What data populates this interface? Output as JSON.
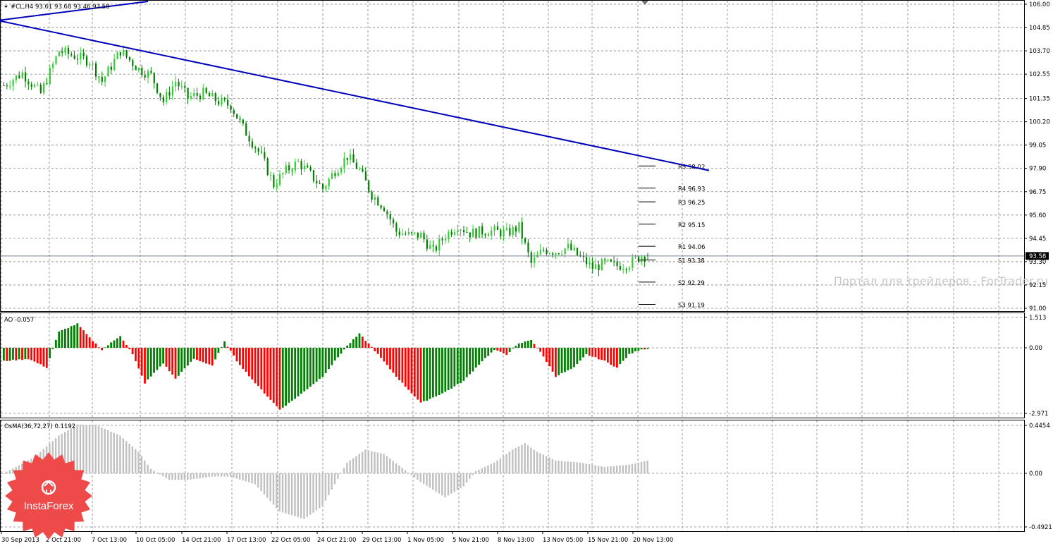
{
  "header": {
    "main_title": "#CL,H4  93.61 93.68 93.46 93.58",
    "ao_title": "AO -0.057",
    "osma_title": "OsMA(36,72,27) 0.1192"
  },
  "price_axis": {
    "labels": [
      "106.00",
      "104.85",
      "103.70",
      "102.55",
      "101.35",
      "100.20",
      "99.05",
      "97.90",
      "96.75",
      "95.60",
      "94.45",
      "93.30",
      "92.15",
      "91.00"
    ],
    "current_price": "93.58"
  },
  "ao_axis": {
    "labels": [
      "1.513",
      "0.00",
      "-2.971"
    ]
  },
  "osma_axis": {
    "labels": [
      "0.4454",
      "0.00",
      "-0.4921"
    ]
  },
  "time_axis": {
    "labels": [
      "30 Sep 2013",
      "2 Oct 21:00",
      "7 Oct 13:00",
      "10 Oct 05:00",
      "14 Oct 21:00",
      "17 Oct 13:00",
      "22 Oct 05:00",
      "24 Oct 21:00",
      "29 Oct 13:00",
      "1 Nov 05:00",
      "5 Nov 21:00",
      "8 Nov 13:00",
      "13 Nov 05:00",
      "15 Nov 21:00",
      "20 Nov 13:00"
    ]
  },
  "pivot_levels": [
    {
      "label": "R5 98.02",
      "value": 98.02
    },
    {
      "label": "R4 96.93",
      "value": 96.93
    },
    {
      "label": "R3 96.25",
      "value": 96.25
    },
    {
      "label": "R2 95.15",
      "value": 95.15
    },
    {
      "label": "R1 94.06",
      "value": 94.06
    },
    {
      "label": "S1 93.38",
      "value": 93.38
    },
    {
      "label": "S2 92.29",
      "value": 92.29
    },
    {
      "label": "S3 91.19",
      "value": 91.19
    }
  ],
  "watermark": "Портал для трейдеров - ForTrader.ru",
  "logo": {
    "text": "InstaForex"
  },
  "colors": {
    "bull": "#32cd32",
    "bear": "#008000",
    "ao_up": "#008000",
    "ao_down": "#ff0000",
    "osma": "#c0c0c0",
    "trendline": "#0000bb",
    "logo_red": "#ef4a4a"
  },
  "chart_data": {
    "type": "candlestick",
    "instrument": "#CL",
    "timeframe": "H4",
    "last_ohlc": {
      "open": 93.61,
      "high": 93.68,
      "low": 93.46,
      "close": 93.58
    },
    "price_range": [
      90.8,
      106.2
    ],
    "close_path": [
      [
        0,
        102.0
      ],
      [
        6,
        102.6
      ],
      [
        12,
        101.6
      ],
      [
        18,
        103.7
      ],
      [
        22,
        103.5
      ],
      [
        28,
        103.2
      ],
      [
        32,
        102.2
      ],
      [
        38,
        103.7
      ],
      [
        44,
        102.8
      ],
      [
        48,
        102.5
      ],
      [
        52,
        101.2
      ],
      [
        56,
        102.2
      ],
      [
        60,
        101.4
      ],
      [
        65,
        101.6
      ],
      [
        70,
        101.2
      ],
      [
        74,
        101.0
      ],
      [
        78,
        99.9
      ],
      [
        84,
        98.5
      ],
      [
        88,
        97.1
      ],
      [
        92,
        97.8
      ],
      [
        96,
        98.2
      ],
      [
        100,
        97.6
      ],
      [
        104,
        96.9
      ],
      [
        108,
        97.8
      ],
      [
        112,
        98.5
      ],
      [
        116,
        97.8
      ],
      [
        120,
        96.6
      ],
      [
        124,
        96.0
      ],
      [
        128,
        94.8
      ],
      [
        132,
        94.6
      ],
      [
        136,
        94.6
      ],
      [
        140,
        93.8
      ],
      [
        144,
        94.6
      ],
      [
        148,
        95.1
      ],
      [
        152,
        94.7
      ],
      [
        156,
        94.8
      ],
      [
        160,
        94.8
      ],
      [
        164,
        94.7
      ],
      [
        168,
        95.0
      ],
      [
        172,
        93.2
      ],
      [
        176,
        93.9
      ],
      [
        180,
        93.8
      ],
      [
        184,
        94.0
      ],
      [
        188,
        93.5
      ],
      [
        192,
        93.0
      ],
      [
        196,
        93.2
      ],
      [
        200,
        93.1
      ],
      [
        204,
        93.2
      ],
      [
        208,
        93.6
      ],
      [
        210,
        93.58
      ]
    ],
    "pivot_levels": [
      98.02,
      96.93,
      96.25,
      95.15,
      94.06,
      93.38,
      92.29,
      91.19
    ],
    "current_price": 93.58,
    "trendline": [
      {
        "bar": -2,
        "price": 105.2
      },
      {
        "bar": 230,
        "price": 97.8
      }
    ],
    "ao_range": [
      -2.971,
      1.513
    ],
    "ao_path": [
      [
        0,
        -0.6
      ],
      [
        8,
        -0.5
      ],
      [
        14,
        -0.9
      ],
      [
        18,
        0.8
      ],
      [
        24,
        1.2
      ],
      [
        28,
        0.5
      ],
      [
        32,
        -0.1
      ],
      [
        38,
        0.6
      ],
      [
        42,
        -0.3
      ],
      [
        46,
        -1.6
      ],
      [
        52,
        -0.7
      ],
      [
        56,
        -1.4
      ],
      [
        62,
        -0.5
      ],
      [
        68,
        -0.8
      ],
      [
        72,
        0.3
      ],
      [
        76,
        -0.6
      ],
      [
        82,
        -1.6
      ],
      [
        90,
        -2.8
      ],
      [
        96,
        -2.2
      ],
      [
        104,
        -1.3
      ],
      [
        112,
        0.1
      ],
      [
        116,
        0.7
      ],
      [
        122,
        -0.3
      ],
      [
        128,
        -1.3
      ],
      [
        136,
        -2.5
      ],
      [
        144,
        -2.0
      ],
      [
        150,
        -1.5
      ],
      [
        156,
        -0.6
      ],
      [
        160,
        -0.1
      ],
      [
        164,
        -0.3
      ],
      [
        168,
        0.2
      ],
      [
        172,
        0.4
      ],
      [
        176,
        -0.4
      ],
      [
        180,
        -1.3
      ],
      [
        186,
        -0.9
      ],
      [
        190,
        -0.3
      ],
      [
        196,
        -0.6
      ],
      [
        200,
        -0.9
      ],
      [
        204,
        -0.3
      ],
      [
        208,
        -0.06
      ],
      [
        210,
        -0.057
      ]
    ],
    "osma_range": [
      -0.4921,
      0.4454
    ],
    "osma_path": [
      [
        0,
        0.0
      ],
      [
        10,
        0.15
      ],
      [
        18,
        0.35
      ],
      [
        24,
        0.45
      ],
      [
        30,
        0.45
      ],
      [
        38,
        0.35
      ],
      [
        44,
        0.2
      ],
      [
        48,
        0.04
      ],
      [
        54,
        -0.06
      ],
      [
        60,
        -0.06
      ],
      [
        68,
        -0.03
      ],
      [
        74,
        -0.03
      ],
      [
        82,
        -0.1
      ],
      [
        90,
        -0.35
      ],
      [
        98,
        -0.42
      ],
      [
        104,
        -0.3
      ],
      [
        108,
        -0.1
      ],
      [
        112,
        0.1
      ],
      [
        118,
        0.22
      ],
      [
        124,
        0.18
      ],
      [
        130,
        0.05
      ],
      [
        136,
        -0.08
      ],
      [
        144,
        -0.22
      ],
      [
        150,
        -0.12
      ],
      [
        154,
        0.02
      ],
      [
        160,
        0.1
      ],
      [
        166,
        0.22
      ],
      [
        170,
        0.28
      ],
      [
        174,
        0.2
      ],
      [
        180,
        0.12
      ],
      [
        188,
        0.1
      ],
      [
        196,
        0.06
      ],
      [
        204,
        0.08
      ],
      [
        210,
        0.1192
      ]
    ]
  }
}
